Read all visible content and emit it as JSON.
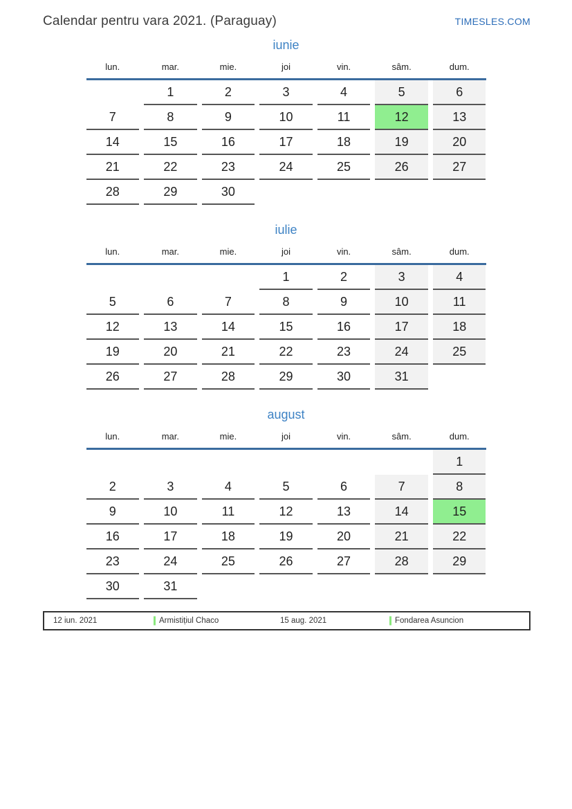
{
  "header": {
    "title": "Calendar pentru vara 2021. (Paraguay)",
    "site": "TIMESLES.COM"
  },
  "colors": {
    "accent_blue": "#3d82c4",
    "site_blue": "#2b6cb8",
    "rule_blue": "#3a6b9e",
    "weekend_gray": "#f2f2f2",
    "holiday_green": "#90ee90",
    "marker_green": "#8ae87d",
    "cell_border": "#555555",
    "legend_border": "#333333"
  },
  "weekday_headers": [
    "lun.",
    "mar.",
    "mie.",
    "joi",
    "vin.",
    "sâm.",
    "dum."
  ],
  "months": [
    {
      "name": "iunie",
      "weeks": [
        [
          {
            "d": "",
            "k": "empty"
          },
          {
            "d": "1",
            "k": "day"
          },
          {
            "d": "2",
            "k": "day"
          },
          {
            "d": "3",
            "k": "day"
          },
          {
            "d": "4",
            "k": "day"
          },
          {
            "d": "5",
            "k": "weekend"
          },
          {
            "d": "6",
            "k": "weekend"
          }
        ],
        [
          {
            "d": "7",
            "k": "day"
          },
          {
            "d": "8",
            "k": "day"
          },
          {
            "d": "9",
            "k": "day"
          },
          {
            "d": "10",
            "k": "day"
          },
          {
            "d": "11",
            "k": "day"
          },
          {
            "d": "12",
            "k": "holiday"
          },
          {
            "d": "13",
            "k": "weekend"
          }
        ],
        [
          {
            "d": "14",
            "k": "day"
          },
          {
            "d": "15",
            "k": "day"
          },
          {
            "d": "16",
            "k": "day"
          },
          {
            "d": "17",
            "k": "day"
          },
          {
            "d": "18",
            "k": "day"
          },
          {
            "d": "19",
            "k": "weekend"
          },
          {
            "d": "20",
            "k": "weekend"
          }
        ],
        [
          {
            "d": "21",
            "k": "day"
          },
          {
            "d": "22",
            "k": "day"
          },
          {
            "d": "23",
            "k": "day"
          },
          {
            "d": "24",
            "k": "day"
          },
          {
            "d": "25",
            "k": "day"
          },
          {
            "d": "26",
            "k": "weekend"
          },
          {
            "d": "27",
            "k": "weekend"
          }
        ],
        [
          {
            "d": "28",
            "k": "day"
          },
          {
            "d": "29",
            "k": "day"
          },
          {
            "d": "30",
            "k": "day"
          },
          {
            "d": "",
            "k": "empty"
          },
          {
            "d": "",
            "k": "empty"
          },
          {
            "d": "",
            "k": "empty"
          },
          {
            "d": "",
            "k": "empty"
          }
        ]
      ]
    },
    {
      "name": "iulie",
      "weeks": [
        [
          {
            "d": "",
            "k": "empty"
          },
          {
            "d": "",
            "k": "empty"
          },
          {
            "d": "",
            "k": "empty"
          },
          {
            "d": "1",
            "k": "day"
          },
          {
            "d": "2",
            "k": "day"
          },
          {
            "d": "3",
            "k": "weekend"
          },
          {
            "d": "4",
            "k": "weekend"
          }
        ],
        [
          {
            "d": "5",
            "k": "day"
          },
          {
            "d": "6",
            "k": "day"
          },
          {
            "d": "7",
            "k": "day"
          },
          {
            "d": "8",
            "k": "day"
          },
          {
            "d": "9",
            "k": "day"
          },
          {
            "d": "10",
            "k": "weekend"
          },
          {
            "d": "11",
            "k": "weekend"
          }
        ],
        [
          {
            "d": "12",
            "k": "day"
          },
          {
            "d": "13",
            "k": "day"
          },
          {
            "d": "14",
            "k": "day"
          },
          {
            "d": "15",
            "k": "day"
          },
          {
            "d": "16",
            "k": "day"
          },
          {
            "d": "17",
            "k": "weekend"
          },
          {
            "d": "18",
            "k": "weekend"
          }
        ],
        [
          {
            "d": "19",
            "k": "day"
          },
          {
            "d": "20",
            "k": "day"
          },
          {
            "d": "21",
            "k": "day"
          },
          {
            "d": "22",
            "k": "day"
          },
          {
            "d": "23",
            "k": "day"
          },
          {
            "d": "24",
            "k": "weekend"
          },
          {
            "d": "25",
            "k": "weekend"
          }
        ],
        [
          {
            "d": "26",
            "k": "day"
          },
          {
            "d": "27",
            "k": "day"
          },
          {
            "d": "28",
            "k": "day"
          },
          {
            "d": "29",
            "k": "day"
          },
          {
            "d": "30",
            "k": "day"
          },
          {
            "d": "31",
            "k": "weekend"
          },
          {
            "d": "",
            "k": "empty"
          }
        ]
      ]
    },
    {
      "name": "august",
      "weeks": [
        [
          {
            "d": "",
            "k": "empty"
          },
          {
            "d": "",
            "k": "empty"
          },
          {
            "d": "",
            "k": "empty"
          },
          {
            "d": "",
            "k": "empty"
          },
          {
            "d": "",
            "k": "empty"
          },
          {
            "d": "",
            "k": "empty"
          },
          {
            "d": "1",
            "k": "weekend"
          }
        ],
        [
          {
            "d": "2",
            "k": "day"
          },
          {
            "d": "3",
            "k": "day"
          },
          {
            "d": "4",
            "k": "day"
          },
          {
            "d": "5",
            "k": "day"
          },
          {
            "d": "6",
            "k": "day"
          },
          {
            "d": "7",
            "k": "weekend"
          },
          {
            "d": "8",
            "k": "weekend"
          }
        ],
        [
          {
            "d": "9",
            "k": "day"
          },
          {
            "d": "10",
            "k": "day"
          },
          {
            "d": "11",
            "k": "day"
          },
          {
            "d": "12",
            "k": "day"
          },
          {
            "d": "13",
            "k": "day"
          },
          {
            "d": "14",
            "k": "weekend"
          },
          {
            "d": "15",
            "k": "holiday"
          }
        ],
        [
          {
            "d": "16",
            "k": "day"
          },
          {
            "d": "17",
            "k": "day"
          },
          {
            "d": "18",
            "k": "day"
          },
          {
            "d": "19",
            "k": "day"
          },
          {
            "d": "20",
            "k": "day"
          },
          {
            "d": "21",
            "k": "weekend"
          },
          {
            "d": "22",
            "k": "weekend"
          }
        ],
        [
          {
            "d": "23",
            "k": "day"
          },
          {
            "d": "24",
            "k": "day"
          },
          {
            "d": "25",
            "k": "day"
          },
          {
            "d": "26",
            "k": "day"
          },
          {
            "d": "27",
            "k": "day"
          },
          {
            "d": "28",
            "k": "weekend"
          },
          {
            "d": "29",
            "k": "weekend"
          }
        ],
        [
          {
            "d": "30",
            "k": "day"
          },
          {
            "d": "31",
            "k": "day"
          },
          {
            "d": "",
            "k": "empty"
          },
          {
            "d": "",
            "k": "empty"
          },
          {
            "d": "",
            "k": "empty"
          },
          {
            "d": "",
            "k": "empty"
          },
          {
            "d": "",
            "k": "empty"
          }
        ]
      ]
    }
  ],
  "legend": {
    "items": [
      {
        "date": "12 iun. 2021",
        "label": "Armistițiul Chaco"
      },
      {
        "date": "15 aug. 2021",
        "label": "Fondarea Asuncion"
      }
    ]
  }
}
